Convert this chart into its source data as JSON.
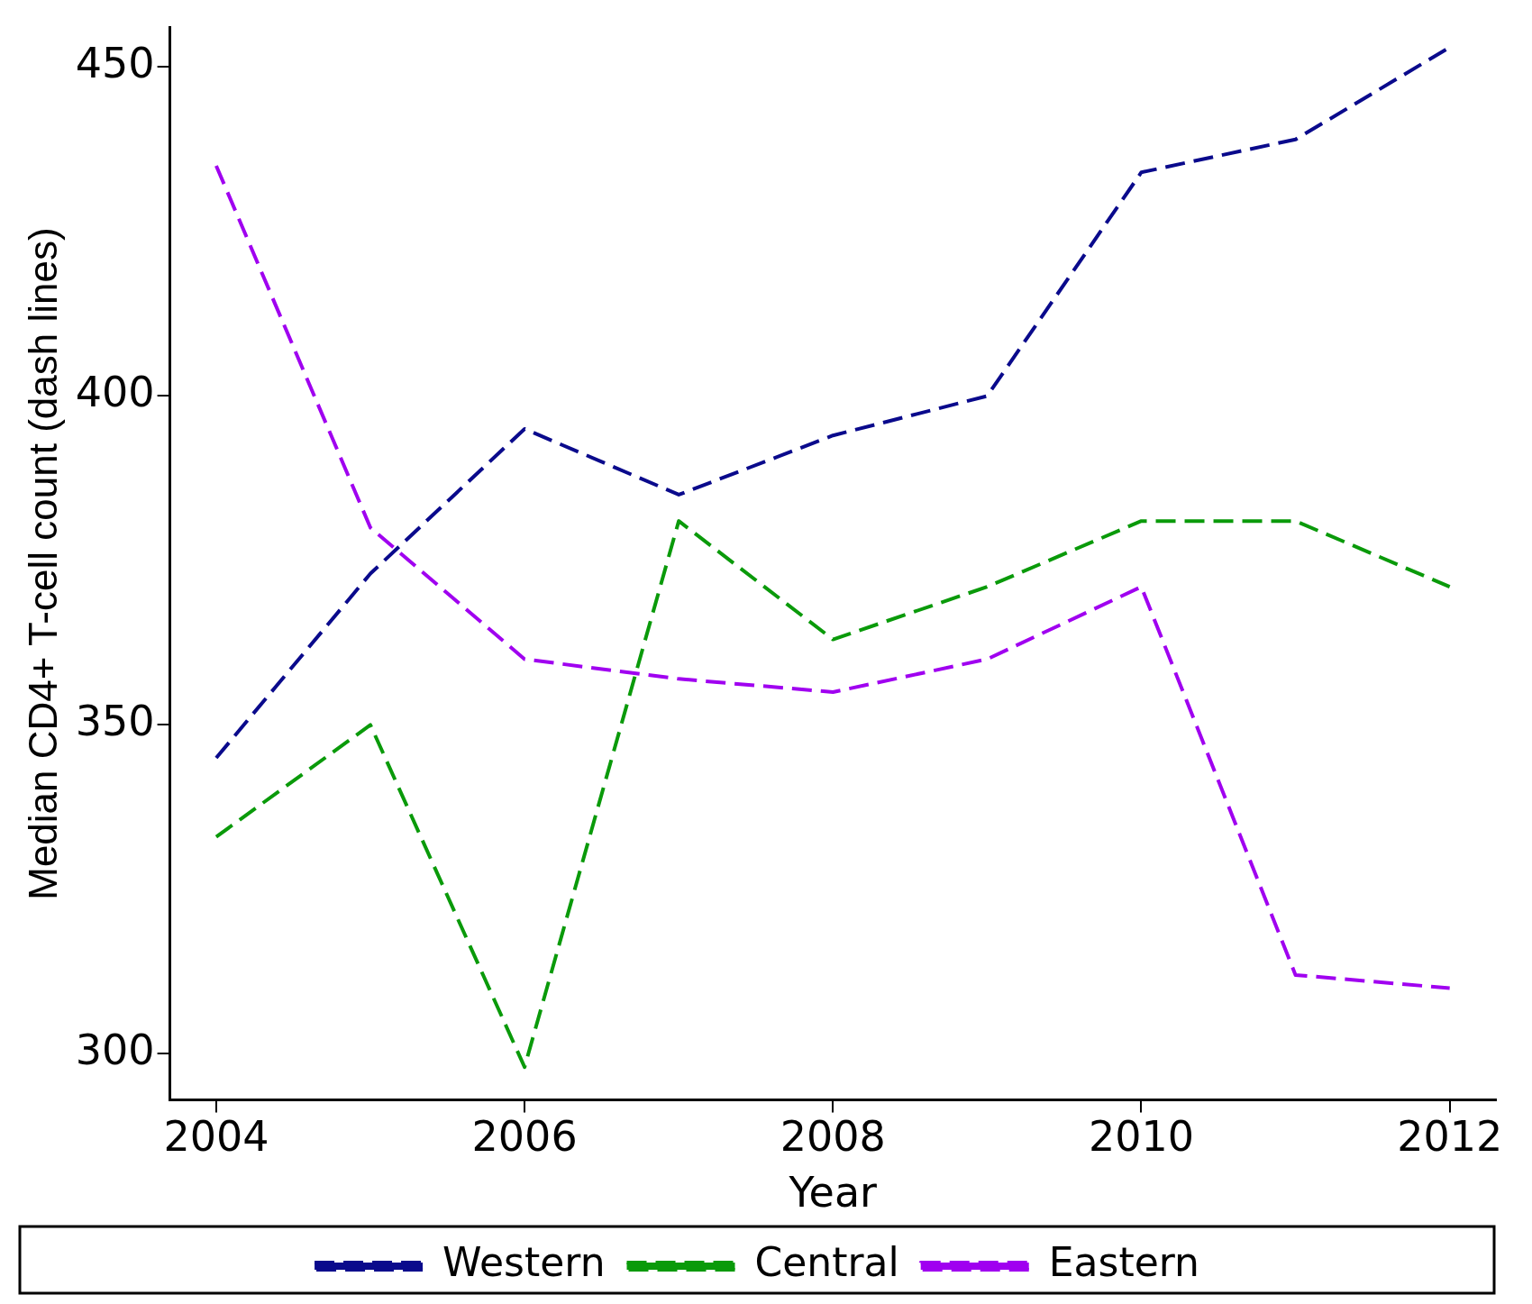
{
  "chart_data": {
    "type": "line",
    "xlabel": "Year",
    "ylabel": "Median CD4+ T-cell count (dash lines)",
    "x": [
      2004,
      2005,
      2006,
      2007,
      2008,
      2009,
      2010,
      2011,
      2012
    ],
    "series": [
      {
        "name": "Western",
        "color": "#0a0a8c",
        "values": [
          345,
          373,
          395,
          385,
          394,
          400,
          434,
          439,
          453
        ]
      },
      {
        "name": "Central",
        "color": "#0a9a0a",
        "values": [
          333,
          350,
          298,
          381,
          363,
          371,
          381,
          381,
          371
        ]
      },
      {
        "name": "Eastern",
        "color": "#a000f0",
        "values": [
          435,
          380,
          360,
          357,
          355,
          360,
          371,
          312,
          310
        ]
      }
    ],
    "xlim": [
      2003.7,
      2012.3
    ],
    "xticks": [
      2004,
      2006,
      2008,
      2010,
      2012
    ],
    "ylim": [
      293,
      456
    ],
    "yticks": [
      300,
      350,
      400,
      450
    ],
    "grid": false,
    "legend": "bottom",
    "marker": "none",
    "line_style": "dashed"
  }
}
